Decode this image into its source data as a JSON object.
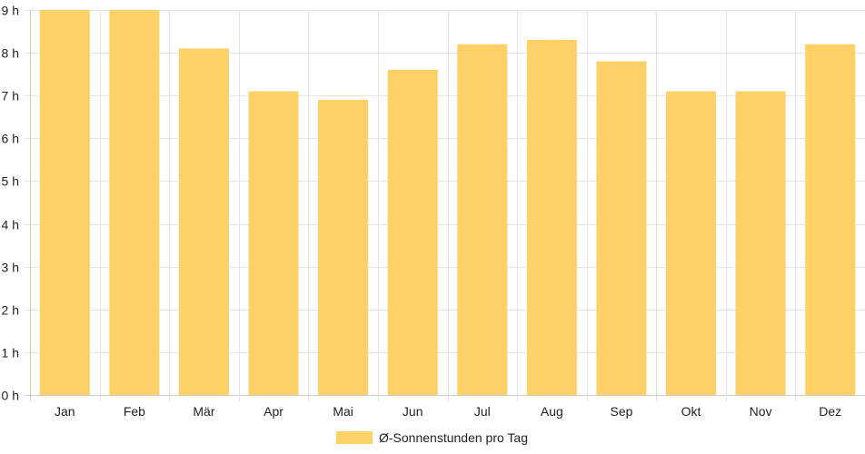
{
  "chart_data": {
    "type": "bar",
    "categories": [
      "Jan",
      "Feb",
      "Mär",
      "Apr",
      "Mai",
      "Jun",
      "Jul",
      "Aug",
      "Sep",
      "Okt",
      "Nov",
      "Dez"
    ],
    "series": [
      {
        "name": "Ø-Sonnenstunden pro Tag",
        "values": [
          9.0,
          9.0,
          8.1,
          7.1,
          6.9,
          7.6,
          8.2,
          8.3,
          7.8,
          7.1,
          7.1,
          8.2
        ]
      }
    ],
    "ylim": [
      0,
      9
    ],
    "yticks": [
      "0 h",
      "1 h",
      "2 h",
      "3 h",
      "4 h",
      "5 h",
      "6 h",
      "7 h",
      "8 h",
      "9 h"
    ],
    "grid": true,
    "legend_position": "bottom-center",
    "colors": {
      "bar": "#fdd068",
      "grid": "#e5e5e5",
      "axis": "#cccccc"
    }
  }
}
